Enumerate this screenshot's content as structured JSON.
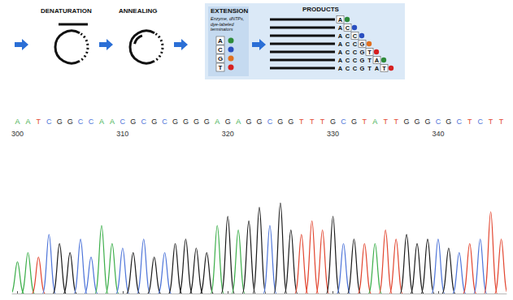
{
  "schematic": {
    "steps": [
      {
        "label": "DENATURATION"
      },
      {
        "label": "ANNEALING"
      },
      {
        "label": "EXTENSION",
        "subtitle": "Enzyme, dNTPs, dye-labeled terminators"
      },
      {
        "label": "PRODUCTS"
      }
    ],
    "terminators": [
      {
        "base": "A",
        "color": "#2e8b3a"
      },
      {
        "base": "C",
        "color": "#2a4fc0"
      },
      {
        "base": "G",
        "color": "#e07020"
      },
      {
        "base": "T",
        "color": "#d62020"
      }
    ],
    "products": [
      "A",
      "AC",
      "ACC",
      "ACCG",
      "ACCGT",
      "ACCGTA",
      "ACCGTAT"
    ]
  },
  "chart_data": {
    "type": "chromatogram",
    "sequence": [
      "A",
      "A",
      "T",
      "C",
      "G",
      "G",
      "C",
      "C",
      "A",
      "A",
      "C",
      "G",
      "C",
      "G",
      "C",
      "G",
      "G",
      "G",
      "G",
      "A",
      "G",
      "A",
      "G",
      "G",
      "C",
      "G",
      "G",
      "T",
      "T",
      "T",
      "G",
      "C",
      "G",
      "T",
      "A",
      "T",
      "T",
      "G",
      "G",
      "G",
      "C",
      "G",
      "C",
      "T",
      "C",
      "T",
      "T"
    ],
    "x": [
      300,
      301,
      302,
      303,
      304,
      305,
      306,
      307,
      308,
      309,
      310,
      311,
      312,
      313,
      314,
      315,
      316,
      317,
      318,
      319,
      320,
      321,
      322,
      323,
      324,
      325,
      326,
      327,
      328,
      329,
      330,
      331,
      332,
      333,
      334,
      335,
      336,
      337,
      338,
      339,
      340,
      341,
      342,
      343,
      344,
      345,
      346
    ],
    "values": [
      35,
      45,
      40,
      65,
      55,
      45,
      60,
      40,
      75,
      55,
      50,
      45,
      60,
      40,
      45,
      55,
      60,
      50,
      45,
      75,
      85,
      70,
      80,
      95,
      75,
      100,
      70,
      65,
      80,
      70,
      85,
      55,
      60,
      55,
      55,
      70,
      60,
      65,
      55,
      60,
      60,
      50,
      45,
      55,
      60,
      90,
      60
    ],
    "colors": [
      "#3cae4a",
      "#3cae4a",
      "#e2452f",
      "#4d74d9",
      "#1b1b1b",
      "#1b1b1b",
      "#4d74d9",
      "#4d74d9",
      "#3cae4a",
      "#3cae4a",
      "#4d74d9",
      "#1b1b1b",
      "#4d74d9",
      "#1b1b1b",
      "#4d74d9",
      "#1b1b1b",
      "#1b1b1b",
      "#1b1b1b",
      "#1b1b1b",
      "#3cae4a",
      "#1b1b1b",
      "#3cae4a",
      "#1b1b1b",
      "#1b1b1b",
      "#4d74d9",
      "#1b1b1b",
      "#1b1b1b",
      "#e2452f",
      "#e2452f",
      "#e2452f",
      "#1b1b1b",
      "#4d74d9",
      "#1b1b1b",
      "#e2452f",
      "#3cae4a",
      "#e2452f",
      "#e2452f",
      "#1b1b1b",
      "#1b1b1b",
      "#1b1b1b",
      "#4d74d9",
      "#1b1b1b",
      "#4d74d9",
      "#e2452f",
      "#4d74d9",
      "#e2452f",
      "#e2452f"
    ],
    "xlim": [
      299.5,
      346.5
    ],
    "xticks": [
      300,
      310,
      320,
      330,
      340
    ],
    "ylim": [
      0,
      100
    ],
    "tick_labels": "x",
    "grid": false
  }
}
